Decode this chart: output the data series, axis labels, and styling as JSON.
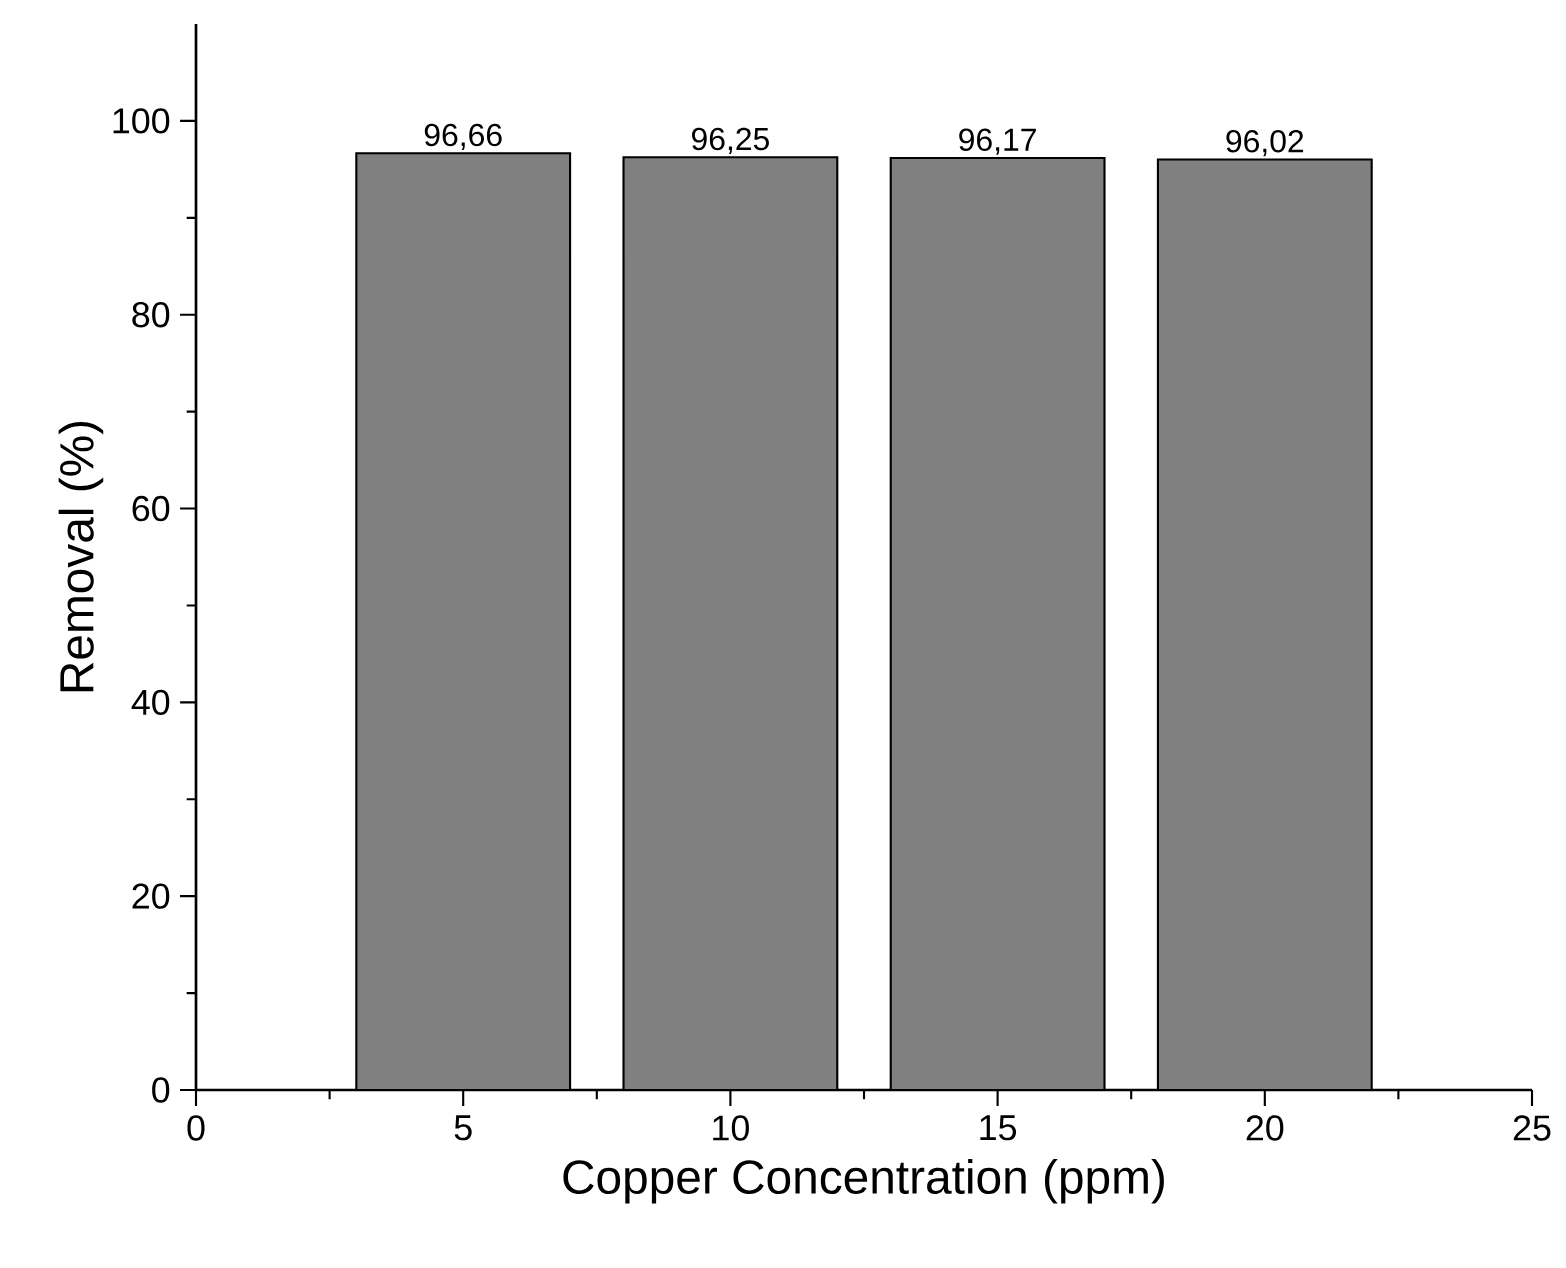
{
  "chart_data": {
    "type": "bar",
    "xlabel": "Copper Concentration (ppm)",
    "ylabel": "Removal (%)",
    "x": [
      5,
      10,
      15,
      20
    ],
    "values": [
      96.66,
      96.25,
      96.17,
      96.02
    ],
    "value_labels": [
      "96,66",
      "96,25",
      "96,17",
      "96,02"
    ],
    "color": "#808080",
    "xlim": [
      0,
      25
    ],
    "ylim": [
      0,
      110
    ],
    "xticks": [
      0,
      5,
      10,
      15,
      20,
      25
    ],
    "yticks": [
      0,
      20,
      40,
      60,
      80,
      100
    ]
  }
}
